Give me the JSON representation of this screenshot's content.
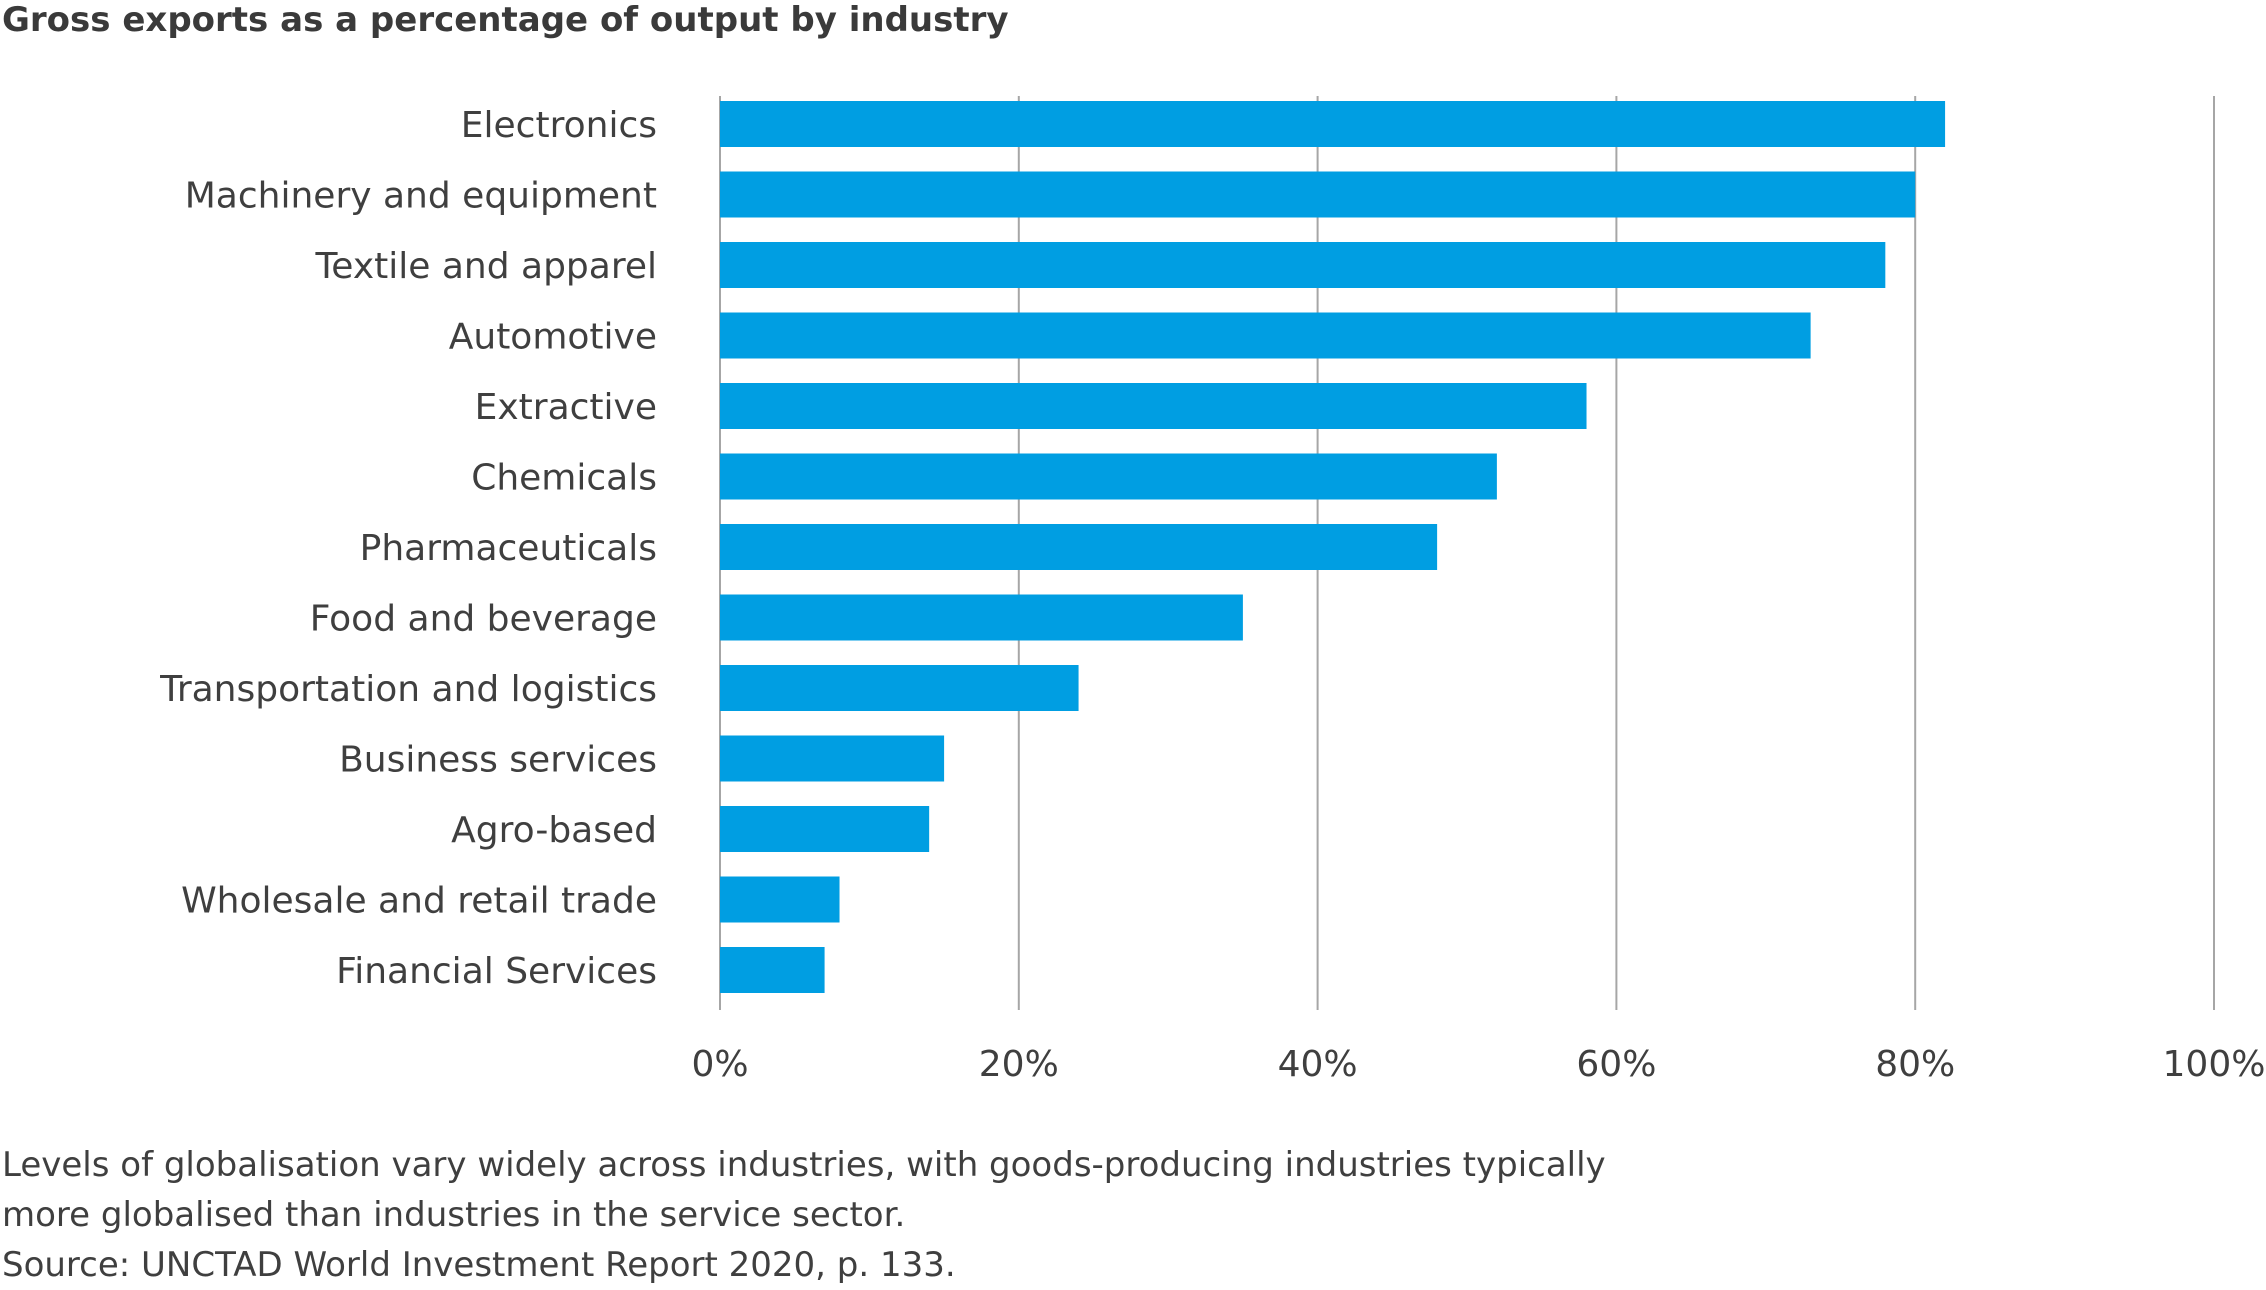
{
  "chart_data": {
    "type": "bar",
    "orientation": "horizontal",
    "title": "Gross exports as a percentage of output by industry",
    "categories": [
      "Electronics",
      "Machinery and equipment",
      "Textile and apparel",
      "Automotive",
      "Extractive",
      "Chemicals",
      "Pharmaceuticals",
      "Food and beverage",
      "Transportation and logistics",
      "Business services",
      "Agro-based",
      "Wholesale and retail trade",
      "Financial Services"
    ],
    "values": [
      82,
      80,
      78,
      73,
      58,
      52,
      48,
      35,
      24,
      15,
      14,
      8,
      7
    ],
    "xlim": [
      0,
      100
    ],
    "xticks": [
      0,
      20,
      40,
      60,
      80,
      100
    ],
    "xtick_labels": [
      "0%",
      "20%",
      "40%",
      "60%",
      "80%",
      "100%"
    ],
    "xlabel": "",
    "ylabel": "",
    "grid": "vertical",
    "legend": "none",
    "bar_color": "#009ee2"
  },
  "caption": {
    "line1": "Levels of globalisation vary widely across industries, with goods-producing industries typically",
    "line2": "more globalised than industries in the service sector.",
    "source": "Source: UNCTAD World Investment Report 2020, p. 133."
  }
}
